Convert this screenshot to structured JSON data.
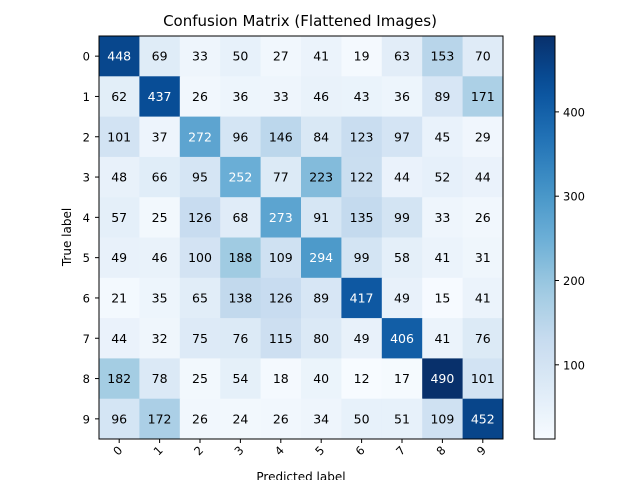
{
  "chart_data": {
    "type": "heatmap",
    "title": "Confusion Matrix (Flattened Images)",
    "xlabel": "Predicted label",
    "ylabel": "True label",
    "x_categories": [
      "0",
      "1",
      "2",
      "3",
      "4",
      "5",
      "6",
      "7",
      "8",
      "9"
    ],
    "y_categories": [
      "0",
      "1",
      "2",
      "3",
      "4",
      "5",
      "6",
      "7",
      "8",
      "9"
    ],
    "values": [
      [
        448,
        69,
        33,
        50,
        27,
        41,
        19,
        63,
        153,
        70
      ],
      [
        62,
        437,
        26,
        36,
        33,
        46,
        43,
        36,
        89,
        171
      ],
      [
        101,
        37,
        272,
        96,
        146,
        84,
        123,
        97,
        45,
        29
      ],
      [
        48,
        66,
        95,
        252,
        77,
        223,
        122,
        44,
        52,
        44
      ],
      [
        57,
        25,
        126,
        68,
        273,
        91,
        135,
        99,
        33,
        26
      ],
      [
        49,
        46,
        100,
        188,
        109,
        294,
        99,
        58,
        41,
        31
      ],
      [
        21,
        35,
        65,
        138,
        126,
        89,
        417,
        49,
        15,
        41
      ],
      [
        44,
        32,
        75,
        76,
        115,
        80,
        49,
        406,
        41,
        76
      ],
      [
        182,
        78,
        25,
        54,
        18,
        40,
        12,
        17,
        490,
        101
      ],
      [
        96,
        172,
        26,
        24,
        26,
        34,
        50,
        51,
        109,
        452
      ]
    ],
    "colormap": "Blues",
    "vmin": 12,
    "vmax": 490,
    "colorbar_ticks": [
      100,
      200,
      300,
      400
    ],
    "grid": false
  }
}
